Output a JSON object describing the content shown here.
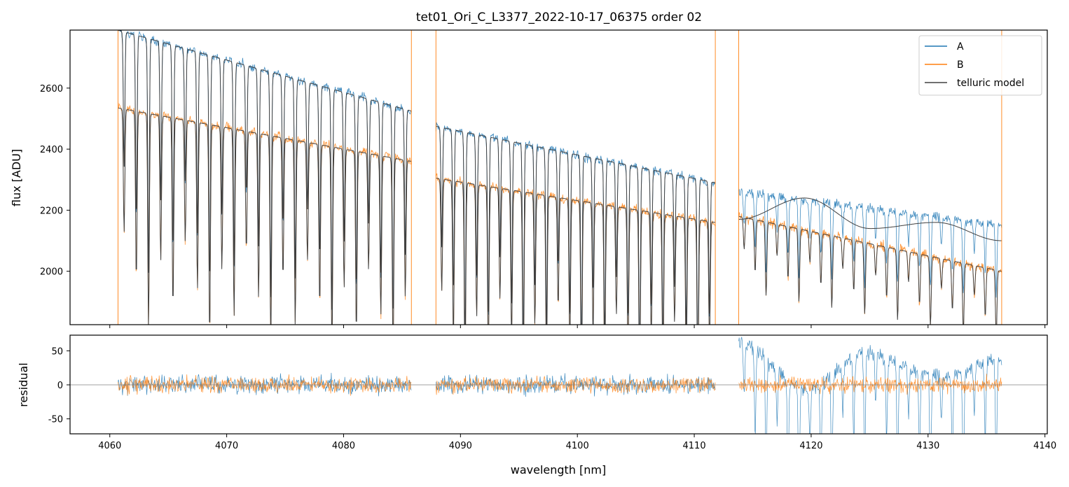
{
  "chart_data": [
    {
      "type": "line",
      "title": "tet01_Ori_C_L3377_2022-10-17_06375  order 02",
      "ylabel": "flux [ADU]",
      "xlim": [
        4056.6,
        4140.2
      ],
      "ylim": [
        1825,
        2790
      ],
      "yticks": [
        2000,
        2200,
        2400,
        2600
      ],
      "xticks": [
        4060,
        4070,
        4080,
        4090,
        4100,
        4110,
        4120,
        4130,
        4140
      ],
      "legend": {
        "placement": "top-right",
        "entries": [
          "A",
          "B",
          "telluric model"
        ]
      },
      "colors": {
        "A": "#1f77b4",
        "B": "#ff7f0e",
        "model": "#404040"
      },
      "segments": [
        {
          "x": [
            4060.7,
            4085.8
          ],
          "a_continuum": [
            2790,
            2525
          ],
          "b_continuum": [
            2535,
            2360
          ],
          "lines": 24
        },
        {
          "x": [
            4087.9,
            4111.8
          ],
          "a_continuum": [
            2475,
            2290
          ],
          "b_continuum": [
            2305,
            2160
          ],
          "lines": 24
        },
        {
          "x": [
            4113.8,
            4136.3
          ],
          "a_continuum": [
            2260,
            2150
          ],
          "b_continuum": [
            2180,
            2000
          ],
          "model_A": [
            2170,
            2240,
            2140,
            2160,
            2100
          ],
          "lines": 24
        }
      ],
      "series": [
        {
          "name": "A"
        },
        {
          "name": "B"
        },
        {
          "name": "telluric model"
        }
      ]
    },
    {
      "type": "line",
      "xlabel": "wavelength [nm]",
      "ylabel": "residual",
      "xlim": [
        4056.6,
        4140.2
      ],
      "ylim": [
        -72,
        73
      ],
      "yticks": [
        -50,
        0,
        50
      ],
      "xticks": [
        4060,
        4070,
        4080,
        4090,
        4100,
        4110,
        4120,
        4130,
        4140
      ],
      "zero_line": 0,
      "series": [
        {
          "name": "A"
        },
        {
          "name": "B"
        }
      ]
    }
  ]
}
